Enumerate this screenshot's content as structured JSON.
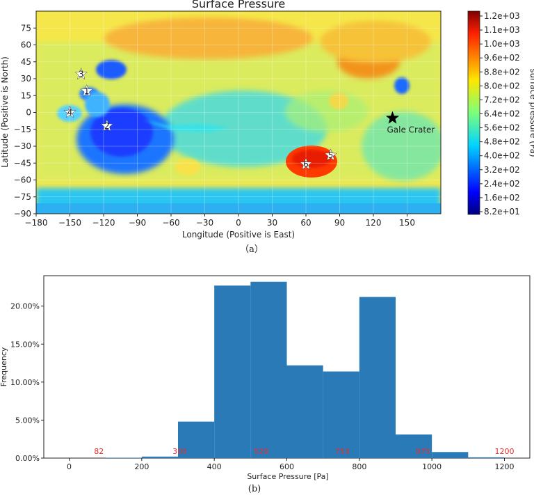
{
  "chart_data": [
    {
      "type": "heatmap",
      "title": "Surface Pressure",
      "xlabel": "Longitude (Positive is East)",
      "ylabel": "Latitude (Positive is North)",
      "xlim": [
        -180,
        180
      ],
      "ylim": [
        -90,
        90
      ],
      "xticks": [
        "−180",
        "−150",
        "−120",
        "−90",
        "−60",
        "−30",
        "0",
        "30",
        "60",
        "90",
        "120",
        "150"
      ],
      "xtick_values": [
        -180,
        -150,
        -120,
        -90,
        -60,
        -30,
        0,
        30,
        60,
        90,
        120,
        150
      ],
      "yticks": [
        "75",
        "60",
        "45",
        "30",
        "15",
        "0",
        "−15",
        "−30",
        "−45",
        "−60",
        "−75",
        "−90"
      ],
      "ytick_values": [
        75,
        60,
        45,
        30,
        15,
        0,
        -15,
        -30,
        -45,
        -60,
        -75,
        -90
      ],
      "grid": true,
      "colorbar": {
        "label": "surface pressure (Pa)",
        "ticks": [
          "1.2e+03",
          "1.1e+03",
          "1.0e+03",
          "9.6e+02",
          "8.8e+02",
          "8.0e+02",
          "7.2e+02",
          "6.4e+02",
          "5.6e+02",
          "4.8e+02",
          "4.0e+02",
          "3.2e+02",
          "2.4e+02",
          "1.6e+02",
          "8.2e+01"
        ],
        "colormap": "jet"
      },
      "markers": [
        {
          "label": "1",
          "lon": -135,
          "lat": 19,
          "style": "white-star"
        },
        {
          "label": "2",
          "lon": -117,
          "lat": -12,
          "style": "white-star"
        },
        {
          "label": "3",
          "lon": -140,
          "lat": 34,
          "style": "white-star"
        },
        {
          "label": "4",
          "lon": -150,
          "lat": 0,
          "style": "white-star"
        },
        {
          "label": "5",
          "lon": 82,
          "lat": -38,
          "style": "white-star"
        },
        {
          "label": "6",
          "lon": 60,
          "lat": -46,
          "style": "white-star"
        },
        {
          "label": "Gale Crater",
          "lon": 137,
          "lat": -5,
          "style": "black-star"
        }
      ],
      "caption": "（a）"
    },
    {
      "type": "bar",
      "title": "",
      "xlabel": "Surface Pressure [Pa]",
      "ylabel": "Frequency",
      "xlim": [
        -70,
        1270
      ],
      "ylim": [
        0,
        0.24
      ],
      "xticks": [
        "0",
        "200",
        "400",
        "600",
        "800",
        "1000",
        "1200"
      ],
      "xtick_values": [
        0,
        200,
        400,
        600,
        800,
        1000,
        1200
      ],
      "yticks": [
        "0.00%",
        "5.00%",
        "10.00%",
        "15.00%",
        "20.00%"
      ],
      "ytick_values": [
        0,
        0.05,
        0.1,
        0.15,
        0.2
      ],
      "bin_edges": [
        100,
        200,
        300,
        400,
        500,
        600,
        700,
        800,
        900,
        1000,
        1100,
        1200
      ],
      "values": [
        0.0005,
        0.002,
        0.048,
        0.227,
        0.232,
        0.122,
        0.114,
        0.212,
        0.031,
        0.008,
        0.001
      ],
      "color": "#2a7ab8",
      "annotations": [
        {
          "text": "82",
          "x": 82
        },
        {
          "text": "305",
          "x": 305
        },
        {
          "text": "529",
          "x": 529
        },
        {
          "text": "753",
          "x": 753
        },
        {
          "text": "975",
          "x": 975
        },
        {
          "text": "1200",
          "x": 1200
        }
      ],
      "annotation_color": "#e03030",
      "caption": "(b)"
    }
  ]
}
